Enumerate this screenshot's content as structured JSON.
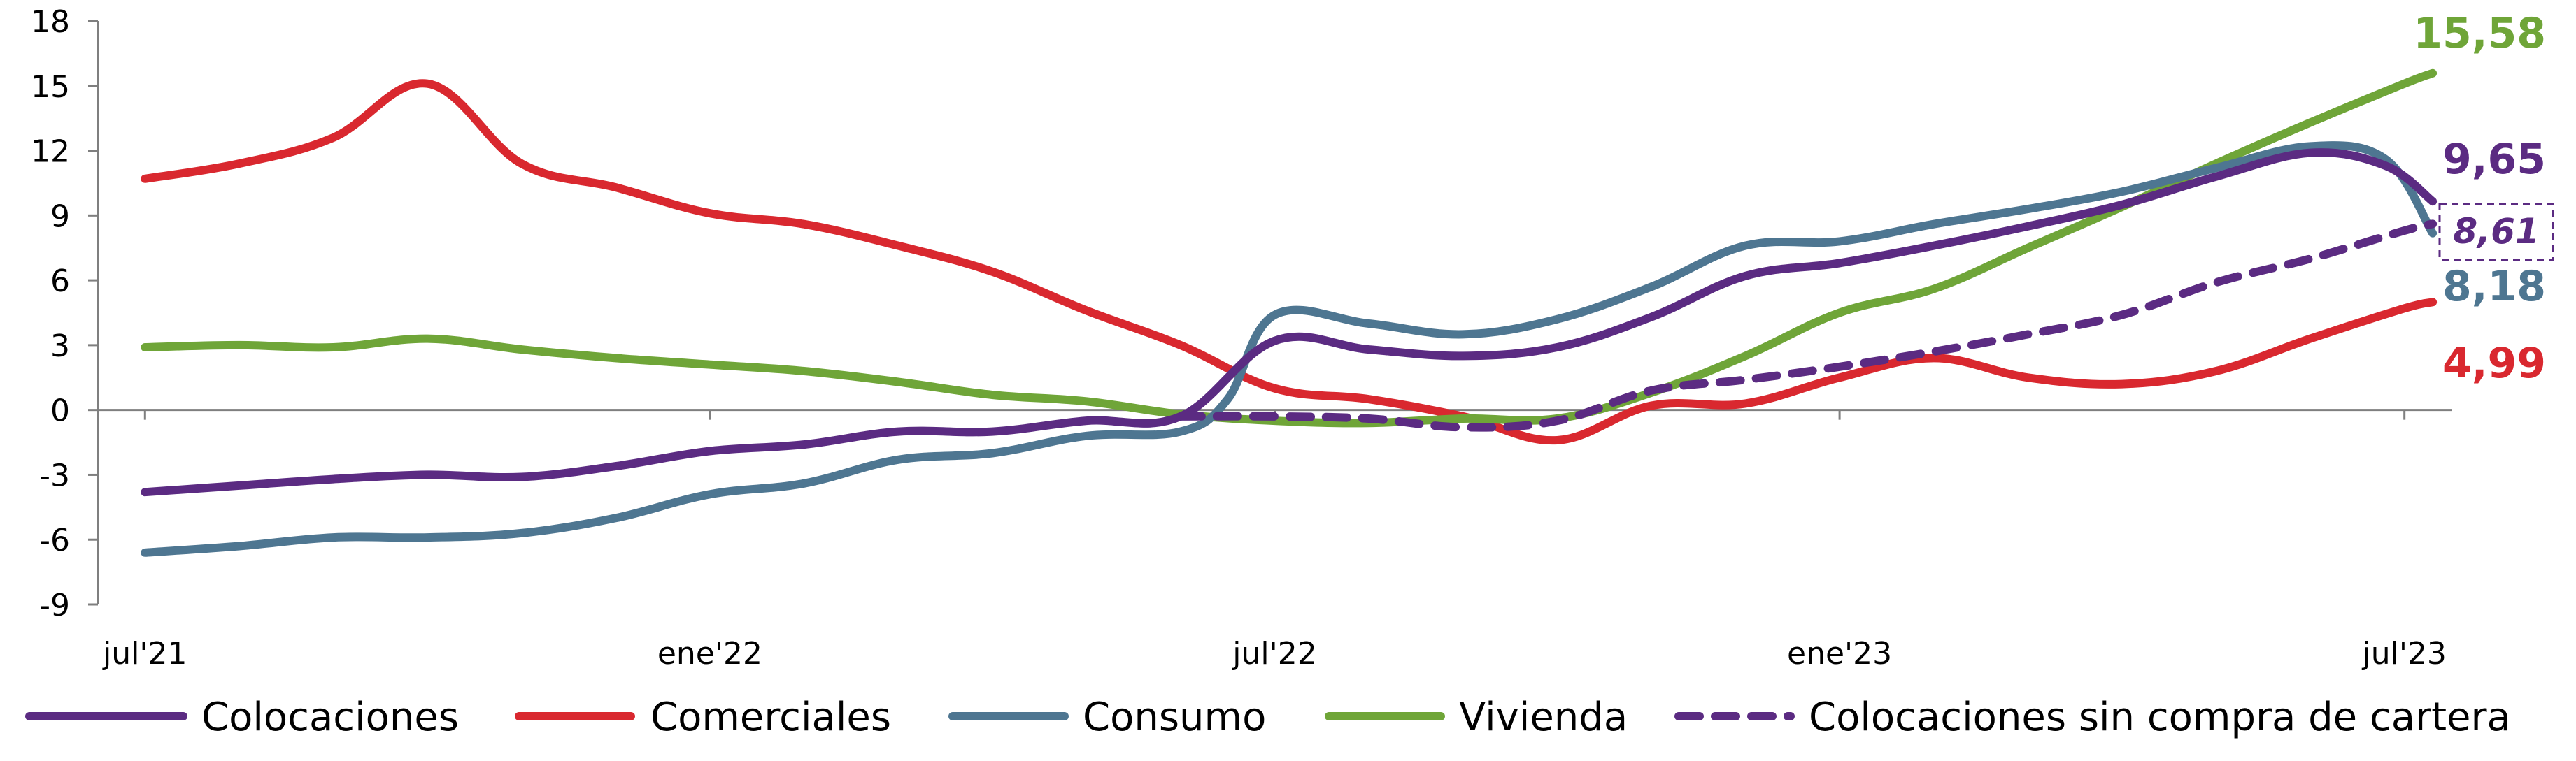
{
  "chart_data": {
    "type": "line",
    "title": "",
    "xlabel": "",
    "ylabel": "",
    "ylim": [
      -9,
      18
    ],
    "yticks": [
      "18",
      "15",
      "12",
      "9",
      "6",
      "3",
      "0",
      "-3",
      "-6",
      "-9"
    ],
    "ytick_values": [
      18,
      15,
      12,
      9,
      6,
      3,
      0,
      -3,
      -6,
      -9
    ],
    "xticks": [
      "jul'21",
      "ene'22",
      "jul'22",
      "ene'23",
      "jul'23"
    ],
    "xtick_values": [
      0,
      6,
      12,
      18,
      24
    ],
    "x_range": [
      -0.5,
      24.5
    ],
    "legend_position": "bottom",
    "grid": false,
    "series": [
      {
        "name": "Colocaciones",
        "color": "#5b2b82",
        "dash": false,
        "end_label": "9,65",
        "x": [
          0,
          1,
          2,
          3,
          4,
          5,
          6,
          7,
          8,
          9,
          10,
          11,
          12,
          13,
          14,
          15,
          16,
          17,
          18,
          19,
          20,
          21,
          22,
          23,
          23.8,
          24.3
        ],
        "y": [
          -3.8,
          -3.5,
          -3.2,
          -3.0,
          -3.1,
          -2.6,
          -1.9,
          -1.6,
          -1.0,
          -1.0,
          -0.5,
          -0.3,
          3.2,
          2.8,
          2.5,
          2.9,
          4.3,
          6.2,
          6.8,
          7.6,
          8.5,
          9.5,
          10.8,
          11.9,
          11.3,
          9.65
        ]
      },
      {
        "name": "Comerciales",
        "color": "#d9282f",
        "dash": false,
        "end_label": "4,99",
        "x": [
          0,
          1,
          2,
          3,
          4,
          5,
          6,
          7,
          8,
          9,
          10,
          11,
          12,
          13,
          14,
          15,
          16,
          17,
          18,
          19,
          20,
          21,
          22,
          23,
          24,
          24.3
        ],
        "y": [
          10.7,
          11.4,
          12.6,
          15.1,
          11.4,
          10.3,
          9.1,
          8.6,
          7.6,
          6.4,
          4.6,
          3.0,
          1.0,
          0.5,
          -0.3,
          -1.4,
          0.2,
          0.3,
          1.5,
          2.4,
          1.5,
          1.2,
          1.8,
          3.3,
          4.7,
          4.99
        ]
      },
      {
        "name": "Consumo",
        "color": "#4e7691",
        "dash": false,
        "end_label": "8,18",
        "x": [
          0,
          1,
          2,
          3,
          4,
          5,
          6,
          7,
          8,
          9,
          10,
          11,
          11.5,
          12,
          13,
          14,
          15,
          16,
          17,
          18,
          19,
          20,
          21,
          22,
          23,
          23.8,
          24.3
        ],
        "y": [
          -6.6,
          -6.3,
          -5.9,
          -5.9,
          -5.7,
          -5.0,
          -3.9,
          -3.4,
          -2.3,
          -2.0,
          -1.2,
          -1.0,
          0.5,
          4.4,
          4.0,
          3.5,
          4.2,
          5.7,
          7.6,
          7.8,
          8.6,
          9.3,
          10.1,
          11.2,
          12.2,
          11.6,
          8.18
        ]
      },
      {
        "name": "Vivienda",
        "color": "#6fa538",
        "dash": false,
        "end_label": "15,58",
        "x": [
          0,
          1,
          2,
          3,
          4,
          5,
          6,
          7,
          8,
          9,
          10,
          11,
          12,
          13,
          14,
          15,
          16,
          17,
          18,
          19,
          20,
          21,
          22,
          23,
          24,
          24.3
        ],
        "y": [
          2.9,
          3.0,
          2.9,
          3.3,
          2.8,
          2.4,
          2.1,
          1.8,
          1.3,
          0.7,
          0.4,
          -0.2,
          -0.5,
          -0.6,
          -0.4,
          -0.4,
          0.8,
          2.5,
          4.5,
          5.6,
          7.5,
          9.4,
          11.4,
          13.3,
          15.1,
          15.58
        ]
      },
      {
        "name": "Colocaciones sin compra de cartera",
        "color": "#5b2b82",
        "dash": true,
        "end_label": "8,61",
        "x": [
          11,
          12,
          13,
          14,
          15,
          16,
          17,
          18,
          19,
          20,
          21,
          22,
          23,
          24,
          24.3
        ],
        "y": [
          -0.3,
          -0.3,
          -0.4,
          -0.8,
          -0.5,
          0.9,
          1.4,
          2.0,
          2.7,
          3.5,
          4.4,
          5.9,
          7.0,
          8.3,
          8.61
        ]
      }
    ]
  }
}
